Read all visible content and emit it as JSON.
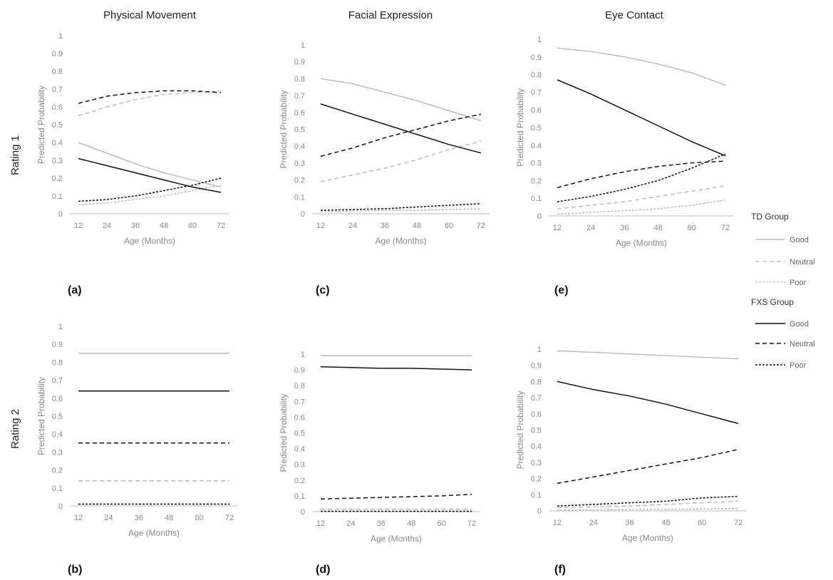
{
  "figure": {
    "col_titles": [
      "Physical Movement",
      "Facial Expression",
      "Eye Contact"
    ],
    "row_labels": [
      "Rating 1",
      "Rating 2"
    ]
  },
  "legend": {
    "groups": [
      {
        "title": "TD Group",
        "items": [
          {
            "label": "Good",
            "color": "#b0b0b0",
            "dash": "solid"
          },
          {
            "label": "Neutral",
            "color": "#b8b8b8",
            "dash": "dashed"
          },
          {
            "label": "Poor",
            "color": "#c4c4c4",
            "dash": "dotted"
          }
        ]
      },
      {
        "title": "FXS Group",
        "items": [
          {
            "label": "Good",
            "color": "#111111",
            "dash": "solid"
          },
          {
            "label": "Neutral",
            "color": "#111111",
            "dash": "dashed"
          },
          {
            "label": "Poor",
            "color": "#111111",
            "dash": "dotted"
          }
        ]
      }
    ]
  },
  "chart_data": [
    {
      "panel": "(a)",
      "type": "line",
      "title": "Physical Movement",
      "xlabel": "Age (Months)",
      "ylabel": "Predicted Probability",
      "x": [
        12,
        24,
        36,
        48,
        60,
        72
      ],
      "xlim": [
        12,
        72
      ],
      "ylim": [
        0,
        1
      ],
      "yticks": [
        "0",
        "0.1",
        "0.2",
        "0.3",
        "0.4",
        "0.5",
        "0.6",
        "0.7",
        "0.8",
        "0.9",
        "1"
      ],
      "series": [
        {
          "name": "Good",
          "group": "TD Group",
          "values": [
            0.4,
            0.34,
            0.28,
            0.23,
            0.19,
            0.15
          ]
        },
        {
          "name": "Neutral",
          "group": "TD Group",
          "values": [
            0.55,
            0.6,
            0.64,
            0.67,
            0.68,
            0.69
          ]
        },
        {
          "name": "Poor",
          "group": "TD Group",
          "values": [
            0.05,
            0.06,
            0.08,
            0.1,
            0.13,
            0.16
          ]
        },
        {
          "name": "Good",
          "group": "FXS Group",
          "values": [
            0.31,
            0.27,
            0.23,
            0.19,
            0.15,
            0.12
          ]
        },
        {
          "name": "Neutral",
          "group": "FXS Group",
          "values": [
            0.62,
            0.66,
            0.68,
            0.69,
            0.69,
            0.68
          ]
        },
        {
          "name": "Poor",
          "group": "FXS Group",
          "values": [
            0.07,
            0.08,
            0.1,
            0.13,
            0.16,
            0.2
          ]
        }
      ]
    },
    {
      "panel": "(b)",
      "type": "line",
      "title": "",
      "xlabel": "Age (Months)",
      "ylabel": "Predicted Probability",
      "x": [
        12,
        24,
        36,
        48,
        60,
        72
      ],
      "xlim": [
        12,
        72
      ],
      "ylim": [
        0,
        1
      ],
      "yticks": [
        "0",
        "0.1",
        "0.2",
        "0.3",
        "0.4",
        "0.5",
        "0.6",
        "0.7",
        "0.8",
        "0.9",
        "1"
      ],
      "series": [
        {
          "name": "Good",
          "group": "TD Group",
          "values": [
            0.85,
            0.85,
            0.85,
            0.85,
            0.85,
            0.85
          ]
        },
        {
          "name": "Neutral",
          "group": "TD Group",
          "values": [
            0.14,
            0.14,
            0.14,
            0.14,
            0.14,
            0.14
          ]
        },
        {
          "name": "Poor",
          "group": "TD Group",
          "values": [
            0.01,
            0.01,
            0.01,
            0.01,
            0.01,
            0.01
          ]
        },
        {
          "name": "Good",
          "group": "FXS Group",
          "values": [
            0.64,
            0.64,
            0.64,
            0.64,
            0.64,
            0.64
          ]
        },
        {
          "name": "Neutral",
          "group": "FXS Group",
          "values": [
            0.35,
            0.35,
            0.35,
            0.35,
            0.35,
            0.35
          ]
        },
        {
          "name": "Poor",
          "group": "FXS Group",
          "values": [
            0.01,
            0.01,
            0.01,
            0.01,
            0.01,
            0.01
          ]
        }
      ]
    },
    {
      "panel": "(c)",
      "type": "line",
      "title": "Facial Expression",
      "xlabel": "Age (Months)",
      "ylabel": "Predicted Probability",
      "x": [
        12,
        24,
        36,
        48,
        60,
        72
      ],
      "xlim": [
        12,
        72
      ],
      "ylim": [
        0,
        1
      ],
      "yticks": [
        "0",
        "0.1",
        "0.2",
        "0.3",
        "0.4",
        "0.5",
        "0.6",
        "0.7",
        "0.8",
        "0.9",
        "1"
      ],
      "series": [
        {
          "name": "Good",
          "group": "TD Group",
          "values": [
            0.8,
            0.77,
            0.72,
            0.67,
            0.61,
            0.55
          ]
        },
        {
          "name": "Neutral",
          "group": "TD Group",
          "values": [
            0.19,
            0.23,
            0.27,
            0.32,
            0.38,
            0.43
          ]
        },
        {
          "name": "Poor",
          "group": "TD Group",
          "values": [
            0.01,
            0.015,
            0.02,
            0.02,
            0.025,
            0.03
          ]
        },
        {
          "name": "Good",
          "group": "FXS Group",
          "values": [
            0.65,
            0.59,
            0.53,
            0.47,
            0.41,
            0.36
          ]
        },
        {
          "name": "Neutral",
          "group": "FXS Group",
          "values": [
            0.34,
            0.39,
            0.45,
            0.5,
            0.55,
            0.59
          ]
        },
        {
          "name": "Poor",
          "group": "FXS Group",
          "values": [
            0.02,
            0.025,
            0.03,
            0.04,
            0.05,
            0.06
          ]
        }
      ]
    },
    {
      "panel": "(d)",
      "type": "line",
      "title": "",
      "xlabel": "Age (Months)",
      "ylabel": "Predicted Probability",
      "x": [
        12,
        24,
        36,
        48,
        60,
        72
      ],
      "xlim": [
        12,
        72
      ],
      "ylim": [
        0,
        1
      ],
      "yticks": [
        "0",
        "0.1",
        "0.2",
        "0.3",
        "0.4",
        "0.5",
        "0.6",
        "0.7",
        "0.8",
        "0.9",
        "1"
      ],
      "series": [
        {
          "name": "Good",
          "group": "TD Group",
          "values": [
            0.99,
            0.99,
            0.99,
            0.99,
            0.99,
            0.99
          ]
        },
        {
          "name": "Neutral",
          "group": "TD Group",
          "values": [
            0.015,
            0.015,
            0.015,
            0.015,
            0.015,
            0.015
          ]
        },
        {
          "name": "Poor",
          "group": "TD Group",
          "values": [
            0.003,
            0.003,
            0.003,
            0.003,
            0.003,
            0.003
          ]
        },
        {
          "name": "Good",
          "group": "FXS Group",
          "values": [
            0.92,
            0.915,
            0.91,
            0.91,
            0.905,
            0.9
          ]
        },
        {
          "name": "Neutral",
          "group": "FXS Group",
          "values": [
            0.08,
            0.085,
            0.09,
            0.095,
            0.1,
            0.11
          ]
        },
        {
          "name": "Poor",
          "group": "FXS Group",
          "values": [
            0.002,
            0.002,
            0.002,
            0.002,
            0.002,
            0.002
          ]
        }
      ]
    },
    {
      "panel": "(e)",
      "type": "line",
      "title": "Eye Contact",
      "xlabel": "Age (Months)",
      "ylabel": "Predicted Probability",
      "x": [
        12,
        24,
        36,
        48,
        60,
        72
      ],
      "xlim": [
        12,
        72
      ],
      "ylim": [
        0,
        1
      ],
      "yticks": [
        "0",
        "0.1",
        "0.2",
        "0.3",
        "0.4",
        "0.5",
        "0.6",
        "0.7",
        "0.8",
        "0.9",
        "1"
      ],
      "series": [
        {
          "name": "Good",
          "group": "TD Group",
          "values": [
            0.95,
            0.93,
            0.9,
            0.86,
            0.81,
            0.74
          ]
        },
        {
          "name": "Neutral",
          "group": "TD Group",
          "values": [
            0.04,
            0.06,
            0.08,
            0.11,
            0.14,
            0.17
          ]
        },
        {
          "name": "Poor",
          "group": "TD Group",
          "values": [
            0.01,
            0.02,
            0.03,
            0.04,
            0.06,
            0.09
          ]
        },
        {
          "name": "Good",
          "group": "FXS Group",
          "values": [
            0.77,
            0.69,
            0.6,
            0.51,
            0.42,
            0.34
          ]
        },
        {
          "name": "Neutral",
          "group": "FXS Group",
          "values": [
            0.16,
            0.21,
            0.25,
            0.28,
            0.3,
            0.31
          ]
        },
        {
          "name": "Poor",
          "group": "FXS Group",
          "values": [
            0.08,
            0.11,
            0.15,
            0.2,
            0.27,
            0.35
          ]
        }
      ]
    },
    {
      "panel": "(f)",
      "type": "line",
      "title": "",
      "xlabel": "Age (Months)",
      "ylabel": "Predicted Probability",
      "x": [
        12,
        24,
        36,
        48,
        60,
        72
      ],
      "xlim": [
        12,
        72
      ],
      "ylim": [
        0,
        1
      ],
      "yticks": [
        "0",
        "0.1",
        "0.2",
        "0.3",
        "0.4",
        "0.5",
        "0.6",
        "0.7",
        "0.8",
        "0.9",
        "1"
      ],
      "series": [
        {
          "name": "Good",
          "group": "TD Group",
          "values": [
            0.99,
            0.98,
            0.97,
            0.96,
            0.95,
            0.94
          ]
        },
        {
          "name": "Neutral",
          "group": "TD Group",
          "values": [
            0.02,
            0.025,
            0.03,
            0.04,
            0.05,
            0.06
          ]
        },
        {
          "name": "Poor",
          "group": "TD Group",
          "values": [
            0.005,
            0.006,
            0.008,
            0.01,
            0.012,
            0.015
          ]
        },
        {
          "name": "Good",
          "group": "FXS Group",
          "values": [
            0.8,
            0.75,
            0.71,
            0.66,
            0.6,
            0.54
          ]
        },
        {
          "name": "Neutral",
          "group": "FXS Group",
          "values": [
            0.17,
            0.21,
            0.25,
            0.29,
            0.33,
            0.38
          ]
        },
        {
          "name": "Poor",
          "group": "FXS Group",
          "values": [
            0.03,
            0.04,
            0.05,
            0.06,
            0.08,
            0.09
          ]
        }
      ]
    }
  ]
}
